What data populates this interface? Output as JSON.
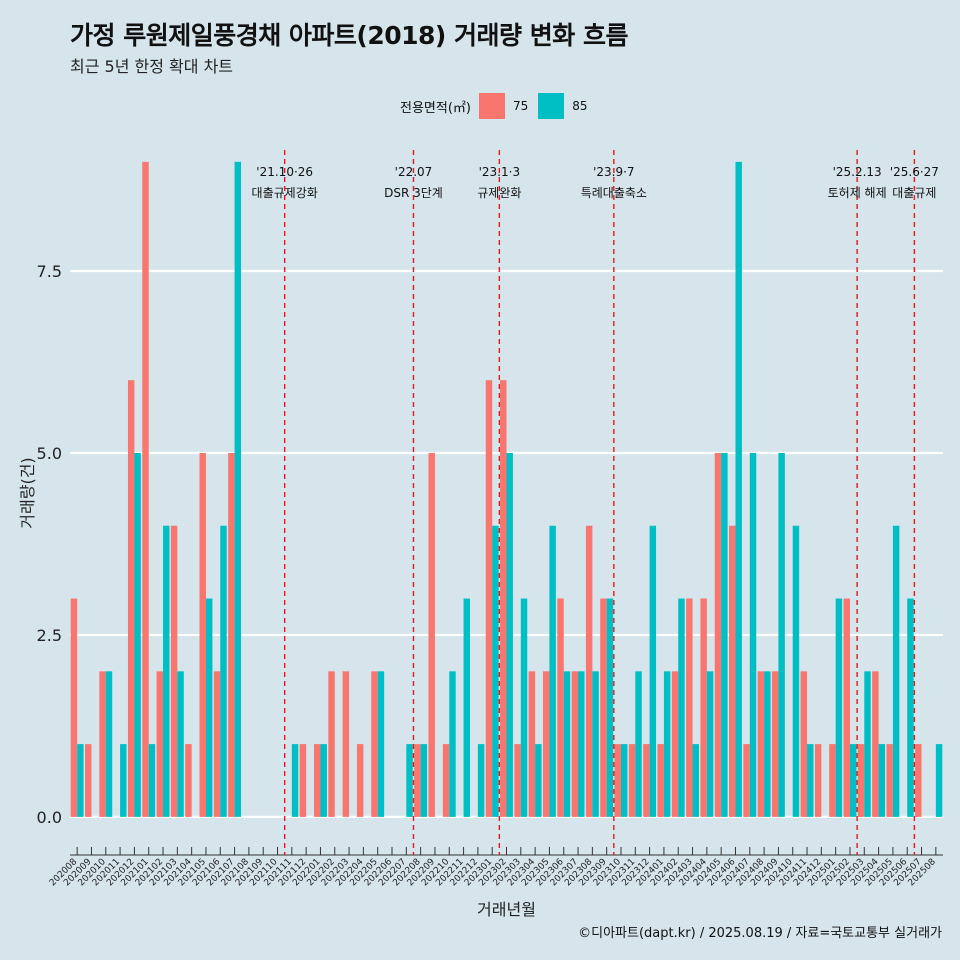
{
  "title": "가정 루원제일풍경채 아파트(2018) 거래량 변화 흐름",
  "subtitle": "최근 5년 한정 확대 차트",
  "caption": "©디아파트(dapt.kr) / 2025.08.19 / 자료=국토교통부 실거래가",
  "legend": {
    "title": "전용면적(㎡)",
    "items": [
      {
        "label": "75",
        "color": "#f8766d"
      },
      {
        "label": "85",
        "color": "#00bfc4"
      }
    ]
  },
  "chart_data": {
    "type": "bar",
    "xlabel": "거래년월",
    "ylabel": "거래량(건)",
    "ylim": [
      -0.4,
      9.3
    ],
    "yticks": [
      0.0,
      2.5,
      5.0,
      7.5
    ],
    "ytick_labels": [
      "0.0",
      "2.5",
      "5.0",
      "7.5"
    ],
    "grid": true,
    "categories": [
      "202008",
      "202009",
      "202010",
      "202011",
      "202012",
      "202101",
      "202102",
      "202103",
      "202104",
      "202105",
      "202106",
      "202107",
      "202108",
      "202109",
      "202110",
      "202111",
      "202112",
      "202201",
      "202202",
      "202203",
      "202204",
      "202205",
      "202206",
      "202207",
      "202208",
      "202209",
      "202210",
      "202211",
      "202212",
      "202301",
      "202302",
      "202303",
      "202304",
      "202305",
      "202306",
      "202307",
      "202308",
      "202309",
      "202310",
      "202311",
      "202312",
      "202401",
      "202402",
      "202403",
      "202404",
      "202405",
      "202406",
      "202407",
      "202408",
      "202409",
      "202410",
      "202411",
      "202412",
      "202501",
      "202502",
      "202503",
      "202504",
      "202505",
      "202506",
      "202507",
      "202508"
    ],
    "series": [
      {
        "name": "75",
        "color": "#f8766d",
        "values": [
          3,
          1,
          2,
          0,
          6,
          9,
          2,
          4,
          1,
          5,
          2,
          5,
          0,
          0,
          0,
          0,
          1,
          1,
          2,
          2,
          1,
          2,
          0,
          0,
          1,
          5,
          1,
          0,
          0,
          6,
          6,
          1,
          2,
          2,
          3,
          2,
          4,
          3,
          1,
          1,
          1,
          1,
          2,
          3,
          3,
          5,
          4,
          1,
          2,
          2,
          0,
          2,
          1,
          1,
          3,
          1,
          2,
          1,
          0,
          1,
          0
        ]
      },
      {
        "name": "85",
        "color": "#00bfc4",
        "values": [
          1,
          0,
          2,
          1,
          5,
          1,
          4,
          2,
          0,
          3,
          4,
          9,
          0,
          0,
          0,
          1,
          0,
          1,
          0,
          0,
          0,
          2,
          0,
          1,
          1,
          0,
          2,
          3,
          1,
          4,
          5,
          3,
          1,
          4,
          2,
          2,
          2,
          3,
          1,
          2,
          4,
          2,
          3,
          1,
          2,
          5,
          9,
          5,
          2,
          5,
          4,
          1,
          0,
          3,
          1,
          2,
          1,
          4,
          3,
          0,
          1
        ]
      }
    ],
    "annotations": [
      {
        "after": "202110",
        "date": "'21.10·26",
        "text": "대출규제강화"
      },
      {
        "after": "202207",
        "date": "'22.07",
        "text": "DSR 3단계"
      },
      {
        "after": "202301",
        "date": "'23.1·3",
        "text": "규제완화"
      },
      {
        "after": "202309",
        "date": "'23.9·7",
        "text": "특례대출축소"
      },
      {
        "after": "202502",
        "date": "'25.2.13",
        "text": "토허제 해제"
      },
      {
        "after": "202506",
        "date": "'25.6·27",
        "text": "대출규제"
      }
    ]
  }
}
